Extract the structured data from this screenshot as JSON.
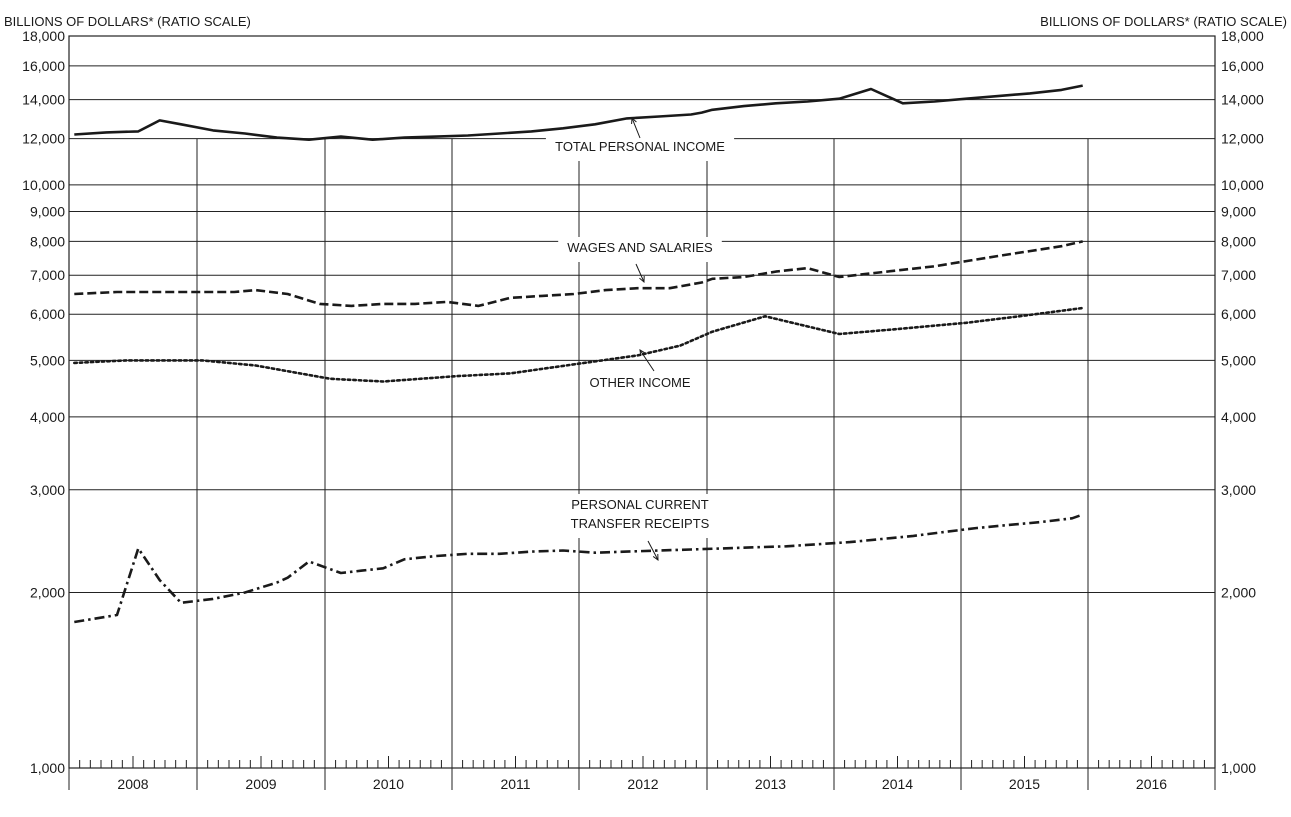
{
  "chart_data": {
    "type": "line",
    "y_scale": "log",
    "left_axis_title": "BILLIONS OF DOLLARS* (RATIO SCALE)",
    "right_axis_title": "BILLIONS OF DOLLARS* (RATIO SCALE)",
    "ylim": [
      1000,
      18000
    ],
    "y_ticks": [
      1000,
      2000,
      3000,
      4000,
      5000,
      6000,
      7000,
      8000,
      9000,
      10000,
      12000,
      14000,
      16000,
      18000
    ],
    "y_tick_labels": [
      "1,000",
      "2,000",
      "3,000",
      "4,000",
      "5,000",
      "6,000",
      "7,000",
      "8,000",
      "9,000",
      "10,000",
      "12,000",
      "14,000",
      "16,000",
      "18,000"
    ],
    "x_categories": [
      "2008",
      "2009",
      "2010",
      "2011",
      "2012",
      "2013",
      "2014",
      "2015",
      "2016"
    ],
    "xlim": [
      "2008-01",
      "2016-12"
    ],
    "grid": "horizontal at each y tick; vertical at year boundaries",
    "series": [
      {
        "name": "TOTAL PERSONAL INCOME",
        "style": "solid",
        "x": [
          "2008-01",
          "2008-04",
          "2008-07",
          "2008-09",
          "2008-11",
          "2009-02",
          "2009-05",
          "2009-08",
          "2009-11",
          "2010-02",
          "2010-05",
          "2010-08",
          "2010-11",
          "2011-02",
          "2011-05",
          "2011-08",
          "2011-11",
          "2012-02",
          "2012-05",
          "2012-08",
          "2012-11",
          "2012-12",
          "2013-01",
          "2013-04",
          "2013-07",
          "2013-10",
          "2014-01",
          "2014-04",
          "2014-07",
          "2014-10",
          "2015-01",
          "2015-04",
          "2015-07",
          "2015-10",
          "2015-12"
        ],
        "values": [
          12200,
          12300,
          12350,
          12900,
          12700,
          12400,
          12250,
          12050,
          11950,
          12100,
          11950,
          12050,
          12100,
          12150,
          12250,
          12350,
          12500,
          12700,
          13000,
          13100,
          13200,
          13300,
          13450,
          13650,
          13800,
          13900,
          14050,
          14600,
          13800,
          13900,
          14050,
          14200,
          14350,
          14550,
          14800
        ]
      },
      {
        "name": "WAGES AND SALARIES",
        "style": "dashed",
        "x": [
          "2008-01",
          "2008-05",
          "2008-09",
          "2009-01",
          "2009-04",
          "2009-06",
          "2009-09",
          "2009-12",
          "2010-03",
          "2010-06",
          "2010-09",
          "2010-12",
          "2011-03",
          "2011-06",
          "2011-09",
          "2011-12",
          "2012-03",
          "2012-06",
          "2012-09",
          "2012-12",
          "2013-01",
          "2013-04",
          "2013-07",
          "2013-10",
          "2014-01",
          "2014-04",
          "2014-07",
          "2014-10",
          "2015-01",
          "2015-04",
          "2015-07",
          "2015-10",
          "2015-12"
        ],
        "values": [
          6500,
          6550,
          6550,
          6550,
          6550,
          6600,
          6500,
          6250,
          6200,
          6250,
          6250,
          6300,
          6200,
          6400,
          6450,
          6500,
          6600,
          6650,
          6650,
          6800,
          6900,
          6950,
          7100,
          7200,
          6950,
          7050,
          7150,
          7250,
          7400,
          7550,
          7700,
          7850,
          8000
        ]
      },
      {
        "name": "OTHER INCOME",
        "style": "dotted",
        "x": [
          "2008-01",
          "2008-06",
          "2009-01",
          "2009-06",
          "2010-01",
          "2010-06",
          "2011-01",
          "2011-06",
          "2012-01",
          "2012-06",
          "2012-10",
          "2012-12",
          "2013-01",
          "2013-06",
          "2014-01",
          "2014-06",
          "2015-01",
          "2015-06",
          "2015-12"
        ],
        "values": [
          4950,
          5000,
          5000,
          4900,
          4650,
          4600,
          4700,
          4750,
          4950,
          5100,
          5300,
          5500,
          5600,
          5950,
          5550,
          5650,
          5800,
          5950,
          6150
        ]
      },
      {
        "name": "PERSONAL CURRENT TRANSFER RECEIPTS",
        "style": "dashdot",
        "x": [
          "2008-01",
          "2008-05",
          "2008-07",
          "2008-09",
          "2008-11",
          "2009-02",
          "2009-05",
          "2009-08",
          "2009-09",
          "2009-11",
          "2010-02",
          "2010-04",
          "2010-06",
          "2010-08",
          "2010-11",
          "2011-02",
          "2011-05",
          "2011-08",
          "2011-11",
          "2012-02",
          "2012-05",
          "2012-08",
          "2012-11",
          "2013-02",
          "2013-05",
          "2013-08",
          "2013-11",
          "2014-02",
          "2014-05",
          "2014-08",
          "2014-11",
          "2015-02",
          "2015-05",
          "2015-08",
          "2015-11",
          "2015-12"
        ],
        "values": [
          1780,
          1830,
          2380,
          2100,
          1920,
          1950,
          2000,
          2080,
          2120,
          2260,
          2160,
          2180,
          2200,
          2280,
          2310,
          2330,
          2330,
          2350,
          2360,
          2340,
          2350,
          2360,
          2370,
          2380,
          2390,
          2400,
          2420,
          2440,
          2470,
          2500,
          2540,
          2580,
          2610,
          2640,
          2680,
          2720
        ]
      }
    ],
    "annotations": [
      {
        "text": "TOTAL PERSONAL INCOME",
        "series": "TOTAL PERSONAL INCOME"
      },
      {
        "text": "WAGES AND SALARIES",
        "series": "WAGES AND SALARIES"
      },
      {
        "text": "OTHER INCOME",
        "series": "OTHER INCOME"
      },
      {
        "lines": [
          "PERSONAL CURRENT",
          "TRANSFER RECEIPTS"
        ],
        "series": "PERSONAL CURRENT TRANSFER RECEIPTS"
      }
    ]
  }
}
